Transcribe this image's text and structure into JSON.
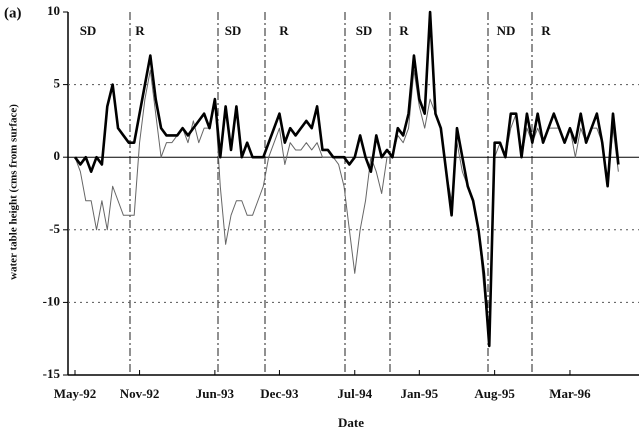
{
  "chart_data": {
    "type": "line",
    "panel_label": "(a)",
    "x_label": "Date",
    "y_label": "water table height (cms from surface)",
    "categories": [
      "May-92",
      null,
      null,
      null,
      null,
      null,
      null,
      null,
      null,
      null,
      null,
      null,
      "Nov-92",
      null,
      null,
      null,
      null,
      null,
      null,
      null,
      null,
      null,
      null,
      null,
      null,
      null,
      "Jun-93",
      null,
      null,
      null,
      null,
      null,
      null,
      null,
      null,
      null,
      null,
      null,
      "Dec-93",
      null,
      null,
      null,
      null,
      null,
      null,
      null,
      null,
      null,
      null,
      null,
      null,
      null,
      "Jul-94",
      null,
      null,
      null,
      null,
      null,
      null,
      null,
      null,
      null,
      null,
      null,
      "Jan-95",
      null,
      null,
      null,
      null,
      null,
      null,
      null,
      null,
      null,
      null,
      null,
      null,
      null,
      "Aug-95",
      null,
      null,
      null,
      null,
      null,
      null,
      null,
      null,
      null,
      null,
      null,
      null,
      null,
      "Mar-96",
      null,
      null,
      null,
      null,
      null,
      null,
      null,
      null,
      null
    ],
    "series": [
      {
        "color": "#000000",
        "values": [
          0,
          -0.5,
          0,
          -1,
          0,
          -0.5,
          3.5,
          5,
          2,
          1.5,
          1,
          1,
          3,
          5,
          7,
          4,
          2,
          1.5,
          1.5,
          1.5,
          2,
          1.5,
          2,
          2.5,
          3,
          2,
          4,
          0,
          3.5,
          0.5,
          3.5,
          0,
          1,
          0,
          0,
          0,
          1,
          2,
          3,
          1,
          2,
          1.5,
          2,
          2.5,
          2,
          3.5,
          0.5,
          0.5,
          0,
          0,
          0,
          -0.5,
          0,
          1.5,
          0,
          -1,
          1.5,
          0,
          0.5,
          0,
          2,
          1.5,
          3,
          7,
          4,
          3,
          10,
          3,
          2,
          -1,
          -4,
          2,
          0,
          -2,
          -3,
          -5,
          -8,
          -13,
          1,
          1,
          0,
          3,
          3,
          0,
          3,
          1,
          3,
          1,
          2,
          3,
          2,
          1,
          2,
          1,
          3,
          1,
          2,
          3,
          1,
          -2,
          3,
          -0.5
        ]
      },
      {
        "color": "#666666",
        "values": [
          0,
          -1,
          -3,
          -3,
          -5,
          -3,
          -5,
          -2,
          -3,
          -4,
          -4,
          -4,
          1,
          4,
          6,
          3,
          0,
          1,
          1,
          1.5,
          2,
          1,
          2.5,
          1,
          2,
          2,
          4,
          -2,
          -6,
          -4,
          -3,
          -3,
          -4,
          -4,
          -3,
          -2,
          0,
          1,
          2,
          -0.5,
          1,
          0.5,
          0.5,
          1,
          0.5,
          1,
          0,
          0,
          0,
          -0.5,
          -2,
          -5,
          -8,
          -5,
          -3,
          0,
          -1,
          -2.5,
          0,
          0,
          1.5,
          1,
          2,
          6,
          3.5,
          2,
          4,
          3,
          2,
          -1,
          -3,
          1,
          -1,
          -2,
          -3,
          -5,
          -9,
          -13,
          0,
          1,
          0,
          2,
          3,
          0,
          2,
          1,
          2,
          1,
          2,
          2,
          2,
          1,
          2,
          0,
          2,
          1,
          2,
          2,
          1,
          -2,
          2,
          -1
        ]
      }
    ],
    "ylim": [
      -15,
      10
    ],
    "yticks": [
      -15,
      -10,
      -5,
      0,
      5,
      10
    ],
    "grid": true,
    "annotations": [
      "SD",
      "R",
      "SD",
      "R",
      "SD",
      "R",
      "ND",
      "R"
    ]
  }
}
